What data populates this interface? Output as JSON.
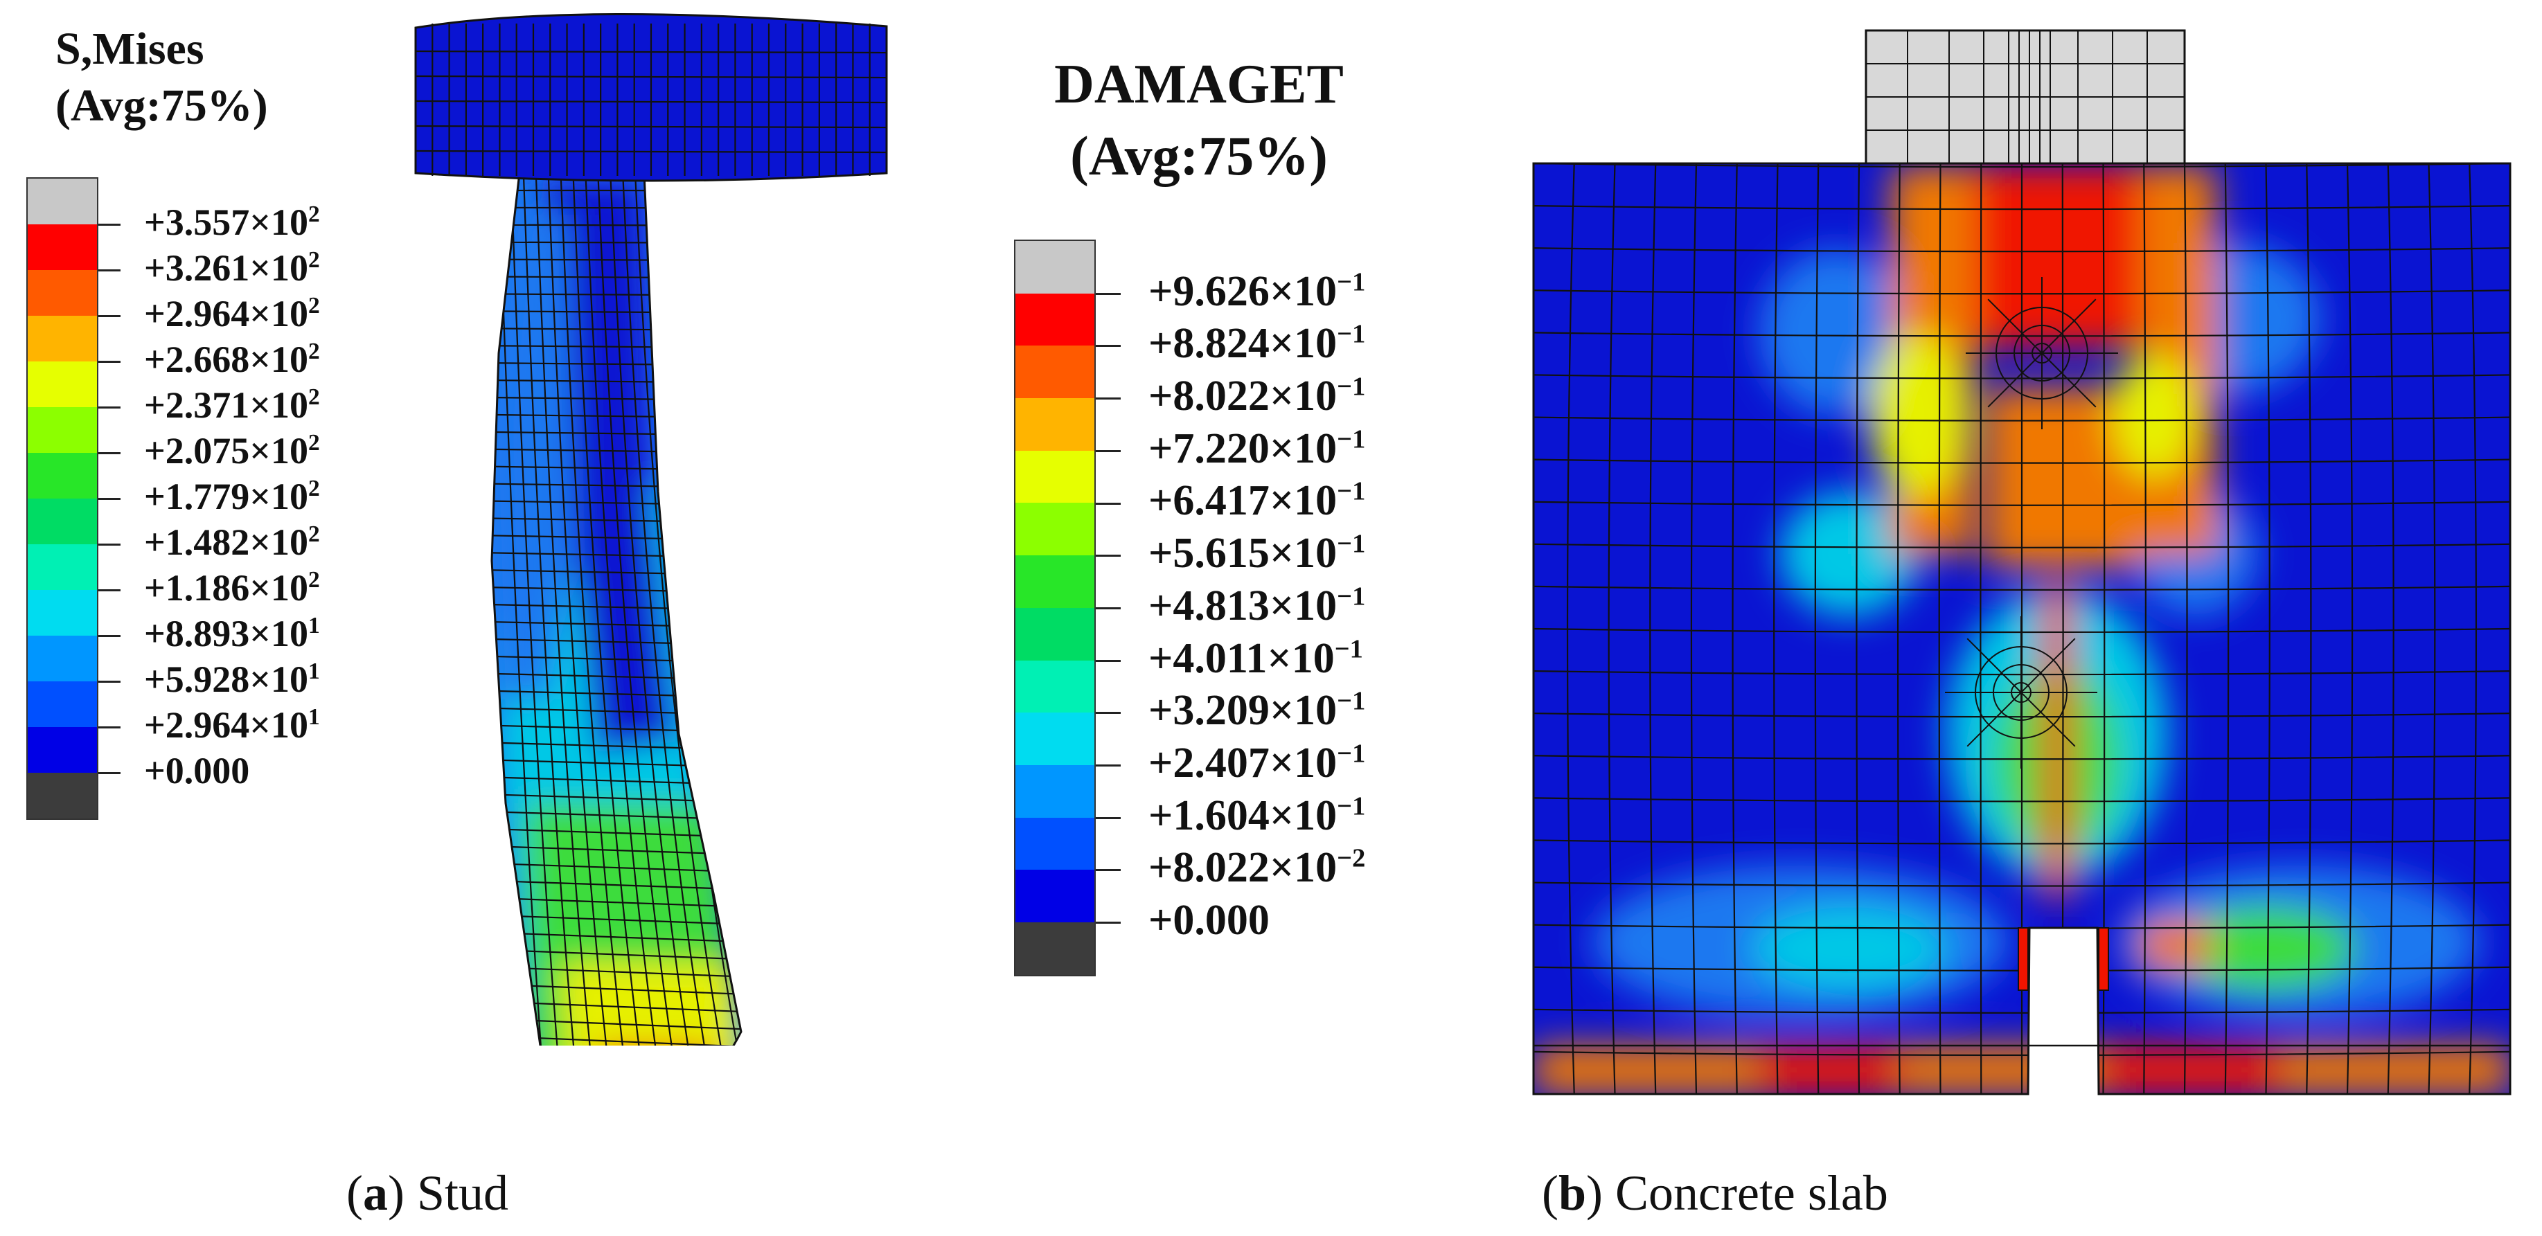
{
  "stud_legend": {
    "title_line1": "S,Mises",
    "title_line2": "(Avg:75%)",
    "labels": [
      "+3.557×10",
      "+3.261×10",
      "+2.964×10",
      "+2.668×10",
      "+2.371×10",
      "+2.075×10",
      "+1.779×10",
      "+1.482×10",
      "+1.186×10",
      "+8.893×10",
      "+5.928×10",
      "+2.964×10",
      "+0.000"
    ],
    "exponents": [
      "2",
      "2",
      "2",
      "2",
      "2",
      "2",
      "2",
      "2",
      "2",
      "1",
      "1",
      "1",
      ""
    ],
    "colors": [
      "#c8c8c8",
      "#ff0000",
      "#ff5a00",
      "#ffb400",
      "#e6ff00",
      "#8cff00",
      "#28e628",
      "#00dc64",
      "#00f0b4",
      "#00dcf0",
      "#0096ff",
      "#0050ff",
      "#0000e6",
      "#3c3c3c"
    ]
  },
  "damage_legend": {
    "title_line1": "DAMAGET",
    "title_line2": "(Avg:75%)",
    "labels": [
      "+9.626×10",
      "+8.824×10",
      "+8.022×10",
      "+7.220×10",
      "+6.417×10",
      "+5.615×10",
      "+4.813×10",
      "+4.011×10",
      "+3.209×10",
      "+2.407×10",
      "+1.604×10",
      "+8.022×10",
      "+0.000"
    ],
    "exponents": [
      "−1",
      "−1",
      "−1",
      "−1",
      "−1",
      "−1",
      "−1",
      "−1",
      "−1",
      "−1",
      "−1",
      "−2",
      ""
    ],
    "colors": [
      "#c8c8c8",
      "#ff0000",
      "#ff5a00",
      "#ffb400",
      "#e6ff00",
      "#8cff00",
      "#28e628",
      "#00dc64",
      "#00f0b4",
      "#00dcf0",
      "#0096ff",
      "#0050ff",
      "#0000e6",
      "#3c3c3c"
    ]
  },
  "captions": {
    "a_letter": "a",
    "a_text": "Stud",
    "b_letter": "b",
    "b_text": "Concrete slab"
  },
  "fill_colors": {
    "dark_blue": "#0a14d2",
    "light_blue": "#1e78f0",
    "cyan": "#00c8e6",
    "green": "#3cdc3c",
    "yellow": "#e6f000",
    "orange": "#f07800",
    "red": "#f01400",
    "grey": "#d8d8d8",
    "mesh": "#111111"
  }
}
